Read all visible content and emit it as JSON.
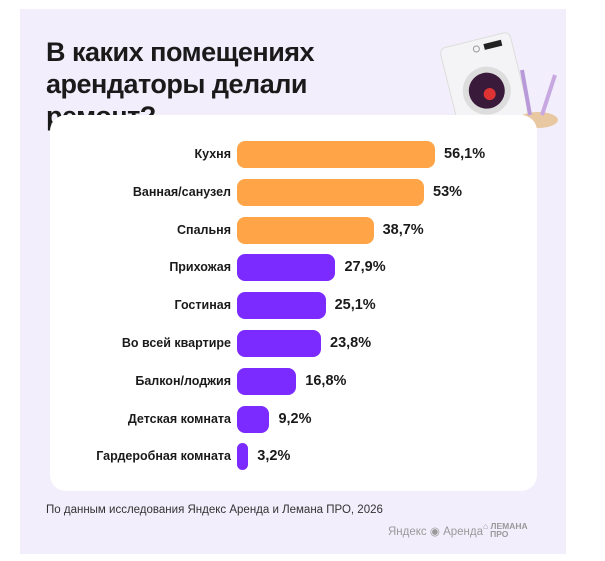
{
  "chart_data": {
    "type": "bar",
    "orientation": "horizontal",
    "title": "В каких помещениях арендаторы делали ремонт?",
    "categories": [
      "Кухня",
      "Ванная/санузел",
      "Спальня",
      "Прихожая",
      "Гостиная",
      "Во всей квартире",
      "Балкон/лоджия",
      "Детская комната",
      "Гардеробная комната"
    ],
    "values": [
      56.1,
      53,
      38.7,
      27.9,
      25.1,
      23.8,
      16.8,
      9.2,
      3.2
    ],
    "value_labels": [
      "56,1%",
      "53%",
      "38,7%",
      "27,9%",
      "25,1%",
      "23,8%",
      "16,8%",
      "9,2%",
      "3,2%"
    ],
    "colors": [
      "#FFA447",
      "#FFA447",
      "#FFA447",
      "#7B2BFF",
      "#7B2BFF",
      "#7B2BFF",
      "#7B2BFF",
      "#7B2BFF",
      "#7B2BFF"
    ],
    "xlim": [
      0,
      60
    ],
    "grid": false,
    "legend": "none"
  },
  "source": "По данным исследования Яндекс Аренда и Лемана ПРО, 2026",
  "logos": {
    "yandex": "Яндекс Аренда",
    "lemana": "ЛЕМАНА ПРО"
  }
}
